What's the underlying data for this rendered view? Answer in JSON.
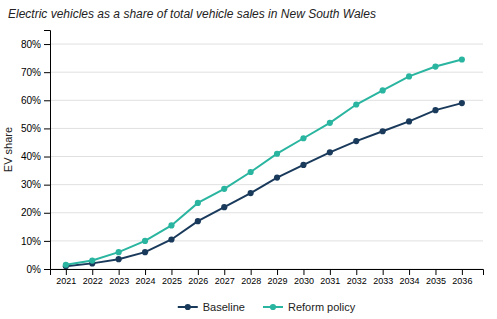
{
  "chart_data": {
    "type": "line",
    "title": "Electric vehicles as a share of total vehicle sales in New South Wales",
    "ylabel": "EV share",
    "x": [
      2021,
      2022,
      2023,
      2024,
      2025,
      2026,
      2027,
      2028,
      2029,
      2030,
      2031,
      2032,
      2033,
      2034,
      2035,
      2036
    ],
    "series": [
      {
        "name": "Baseline",
        "color": "#1a3a5c",
        "marker": "circle",
        "values": [
          0.01,
          0.02,
          0.035,
          0.06,
          0.105,
          0.17,
          0.22,
          0.27,
          0.325,
          0.37,
          0.415,
          0.455,
          0.49,
          0.525,
          0.565,
          0.59
        ]
      },
      {
        "name": "Reform policy",
        "color": "#2ab5a0",
        "marker": "circle",
        "values": [
          0.015,
          0.03,
          0.06,
          0.1,
          0.155,
          0.235,
          0.285,
          0.345,
          0.41,
          0.465,
          0.52,
          0.585,
          0.635,
          0.685,
          0.72,
          0.745
        ]
      }
    ],
    "xlim": [
      2020.4,
      2036.8
    ],
    "xticks": [
      2021,
      2022,
      2023,
      2024,
      2025,
      2026,
      2027,
      2028,
      2029,
      2030,
      2031,
      2032,
      2033,
      2034,
      2035,
      2036
    ],
    "ylim": [
      0,
      0.85
    ],
    "yticks": [
      {
        "value": 0,
        "label": "0%"
      },
      {
        "value": 0.1,
        "label": "10%"
      },
      {
        "value": 0.2,
        "label": "20%"
      },
      {
        "value": 0.3,
        "label": "30%"
      },
      {
        "value": 0.4,
        "label": "40%"
      },
      {
        "value": 0.5,
        "label": "50%"
      },
      {
        "value": 0.6,
        "label": "60%"
      },
      {
        "value": 0.7,
        "label": "70%"
      },
      {
        "value": 0.8,
        "label": "80%"
      }
    ],
    "grid": true,
    "legend": "bottom"
  }
}
